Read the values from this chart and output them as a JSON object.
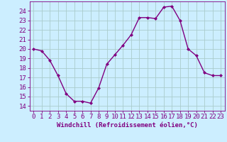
{
  "x": [
    0,
    1,
    2,
    3,
    4,
    5,
    6,
    7,
    8,
    9,
    10,
    11,
    12,
    13,
    14,
    15,
    16,
    17,
    18,
    19,
    20,
    21,
    22,
    23
  ],
  "y": [
    20,
    19.8,
    18.8,
    17.2,
    15.3,
    14.5,
    14.5,
    14.3,
    15.9,
    18.4,
    19.4,
    20.4,
    21.5,
    23.3,
    23.3,
    23.2,
    24.4,
    24.5,
    23.0,
    20.0,
    19.3,
    17.5,
    17.2,
    17.2
  ],
  "line_color": "#800080",
  "marker": "D",
  "marker_size": 2.0,
  "bg_color": "#cceeff",
  "grid_color": "#aacccc",
  "xlabel": "Windchill (Refroidissement éolien,°C)",
  "xlabel_fontsize": 6.5,
  "ylabel_ticks": [
    14,
    15,
    16,
    17,
    18,
    19,
    20,
    21,
    22,
    23,
    24
  ],
  "ylim": [
    13.5,
    25.0
  ],
  "xlim": [
    -0.5,
    23.5
  ],
  "tick_fontsize": 6.5,
  "line_width": 1.0
}
